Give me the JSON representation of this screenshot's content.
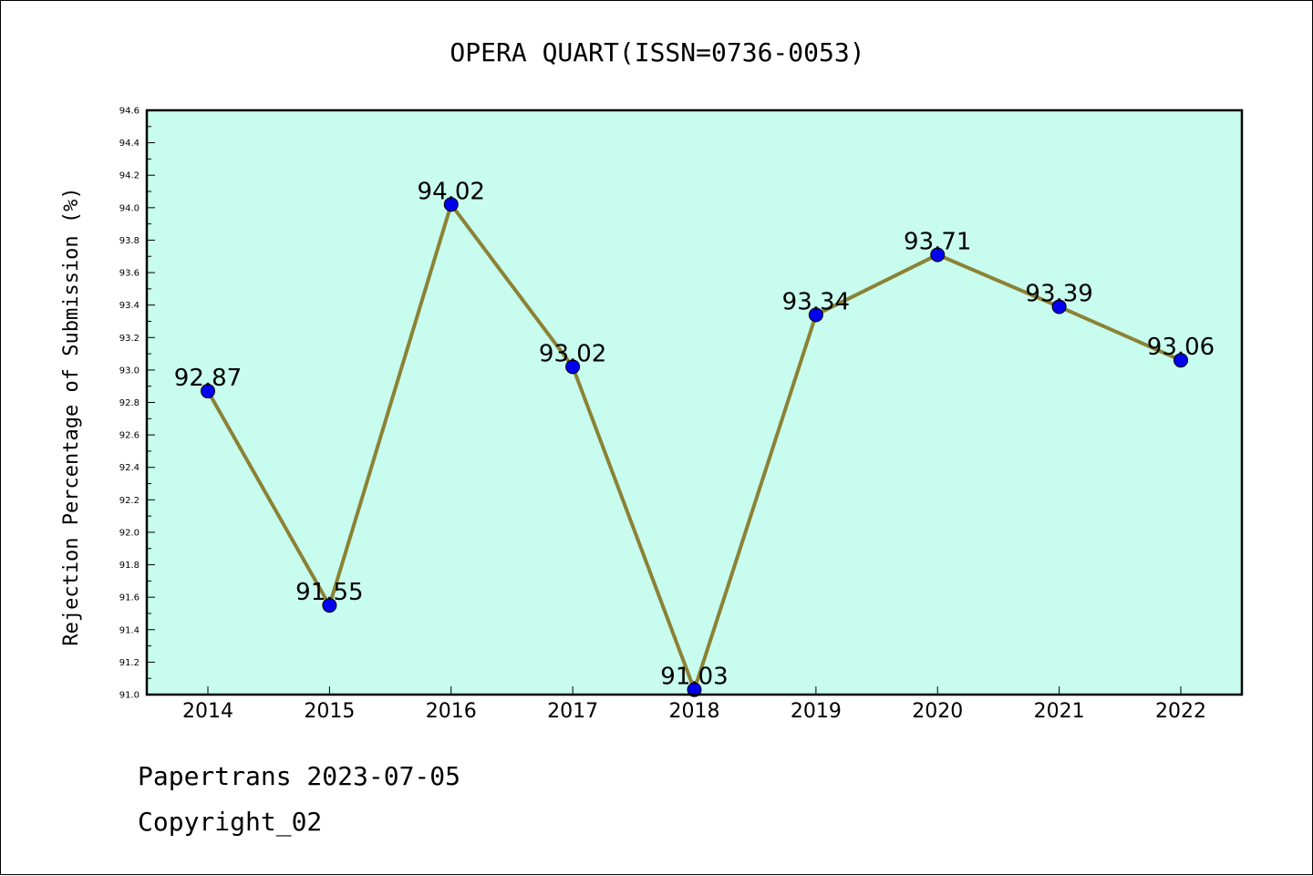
{
  "chart_data": {
    "type": "line",
    "title": "OPERA QUART(ISSN=0736-0053)",
    "xlabel": "",
    "ylabel": "Rejection Percentage of Submission (%)",
    "categories": [
      "2014",
      "2015",
      "2016",
      "2017",
      "2018",
      "2019",
      "2020",
      "2021",
      "2022"
    ],
    "values": [
      92.87,
      91.55,
      94.02,
      93.02,
      91.03,
      93.34,
      93.71,
      93.39,
      93.06
    ],
    "data_labels": [
      "92.87",
      "91.55",
      "94.02",
      "93.02",
      "91.03",
      "93.34",
      "93.71",
      "93.39",
      "93.06"
    ],
    "ylim": [
      91.0,
      94.6
    ],
    "yticks": [
      "91.0",
      "91.2",
      "91.4",
      "91.6",
      "91.8",
      "92.0",
      "92.2",
      "92.4",
      "92.6",
      "92.8",
      "93.0",
      "93.2",
      "93.4",
      "93.6",
      "93.8",
      "94.0",
      "94.2",
      "94.4",
      "94.6"
    ],
    "grid": false,
    "colors": {
      "plot_background": "#c8fcee",
      "line": "#8b8235",
      "marker": "#0000ee"
    }
  },
  "footer": {
    "line1": "Papertrans 2023-07-05",
    "line2": "Copyright_02"
  }
}
